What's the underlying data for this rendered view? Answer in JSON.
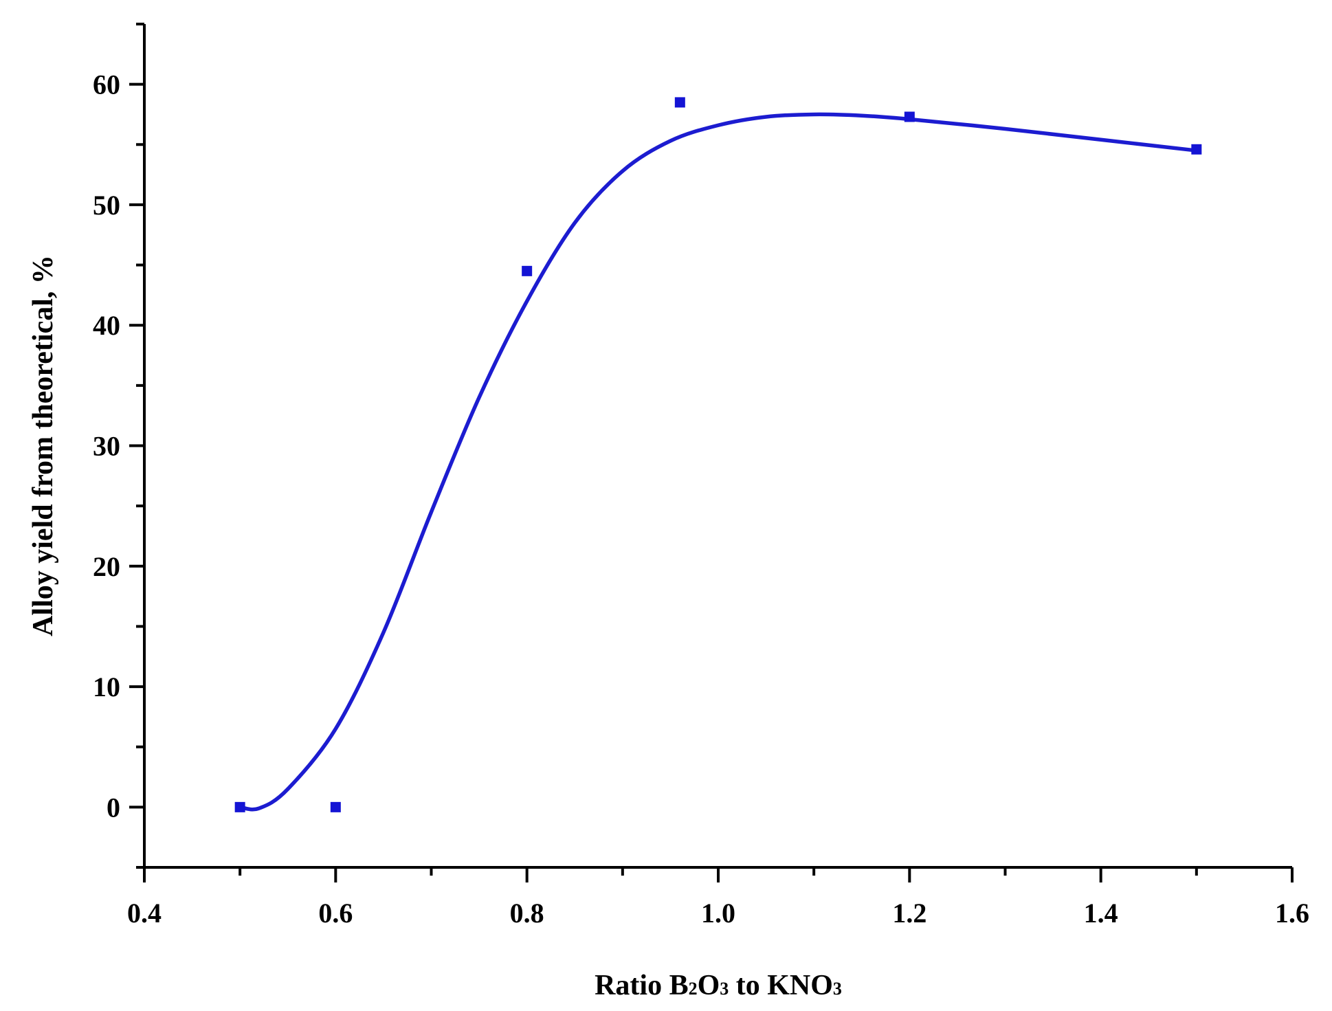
{
  "chart_data": {
    "type": "scatter",
    "xlabel": {
      "parts": [
        "Ratio B",
        "2",
        "O",
        "3",
        " to KNO",
        "3"
      ]
    },
    "ylabel": "Alloy yield from theoretical, %",
    "xlim": [
      0.4,
      1.6
    ],
    "ylim": [
      -5,
      65
    ],
    "x_ticks": [
      "0.4",
      "0.6",
      "0.8",
      "1.0",
      "1.2",
      "1.4",
      "1.6"
    ],
    "y_ticks": [
      "0",
      "10",
      "20",
      "30",
      "40",
      "50",
      "60"
    ],
    "grid": false,
    "series": [
      {
        "type": "scatter",
        "color": "#1414d4",
        "marker": "square",
        "points": [
          {
            "x": 0.5,
            "y": 0.0
          },
          {
            "x": 0.6,
            "y": 0.0
          },
          {
            "x": 0.8,
            "y": 44.5
          },
          {
            "x": 0.96,
            "y": 58.5
          },
          {
            "x": 1.2,
            "y": 57.3
          },
          {
            "x": 1.5,
            "y": 54.6
          }
        ]
      },
      {
        "type": "line",
        "color": "#1c1cd0",
        "smooth": true,
        "points": [
          {
            "x": 0.5,
            "y": 0.0
          },
          {
            "x": 0.52,
            "y": -0.1
          },
          {
            "x": 0.55,
            "y": 1.5
          },
          {
            "x": 0.6,
            "y": 6.5
          },
          {
            "x": 0.65,
            "y": 14.5
          },
          {
            "x": 0.7,
            "y": 24.5
          },
          {
            "x": 0.75,
            "y": 34.0
          },
          {
            "x": 0.8,
            "y": 42.0
          },
          {
            "x": 0.85,
            "y": 48.5
          },
          {
            "x": 0.9,
            "y": 52.8
          },
          {
            "x": 0.95,
            "y": 55.3
          },
          {
            "x": 1.0,
            "y": 56.6
          },
          {
            "x": 1.05,
            "y": 57.3
          },
          {
            "x": 1.1,
            "y": 57.5
          },
          {
            "x": 1.15,
            "y": 57.4
          },
          {
            "x": 1.2,
            "y": 57.1
          },
          {
            "x": 1.3,
            "y": 56.3
          },
          {
            "x": 1.4,
            "y": 55.4
          },
          {
            "x": 1.5,
            "y": 54.5
          }
        ]
      }
    ]
  }
}
